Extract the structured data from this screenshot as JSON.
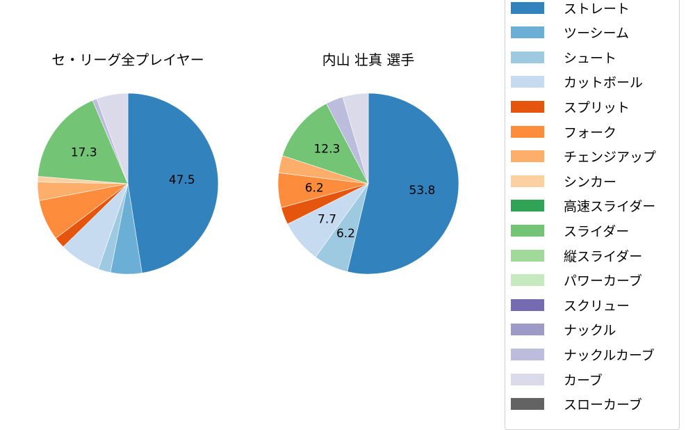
{
  "chart_data": [
    {
      "type": "pie",
      "title": "セ・リーグ全プレイヤー",
      "categories": [
        "ストレート",
        "ツーシーム",
        "シュート",
        "カットボール",
        "スプリット",
        "フォーク",
        "チェンジアップ",
        "シンカー",
        "スライダー",
        "ナックルカーブ",
        "カーブ"
      ],
      "values": [
        47.5,
        5.6,
        2.2,
        7.4,
        2.0,
        7.3,
        3.3,
        1.0,
        17.3,
        0.8,
        5.6
      ],
      "labels_shown": {
        "ストレート": "47.5",
        "スライダー": "17.3"
      },
      "start_angle": 90,
      "direction": "clockwise"
    },
    {
      "type": "pie",
      "title": "内山 壮真  選手",
      "categories": [
        "ストレート",
        "シュート",
        "カットボール",
        "スプリット",
        "フォーク",
        "チェンジアップ",
        "スライダー",
        "ナックルカーブ",
        "カーブ"
      ],
      "values": [
        53.8,
        6.2,
        7.7,
        3.1,
        6.2,
        3.1,
        12.3,
        3.1,
        4.6
      ],
      "labels_shown": {
        "ストレート": "53.8",
        "シュート": "6.2",
        "カットボール": "7.7",
        "フォーク": "6.2",
        "スライダー": "12.3"
      },
      "start_angle": 90,
      "direction": "clockwise"
    }
  ],
  "titles": {
    "left": "セ・リーグ全プレイヤー",
    "right": "内山 壮真  選手"
  },
  "legend": [
    {
      "label": "ストレート",
      "color": "#3182bd"
    },
    {
      "label": "ツーシーム",
      "color": "#6baed6"
    },
    {
      "label": "シュート",
      "color": "#9ecae1"
    },
    {
      "label": "カットボール",
      "color": "#c6dbef"
    },
    {
      "label": "スプリット",
      "color": "#e6550d"
    },
    {
      "label": "フォーク",
      "color": "#fd8d3c"
    },
    {
      "label": "チェンジアップ",
      "color": "#fdae6b"
    },
    {
      "label": "シンカー",
      "color": "#fdd0a2"
    },
    {
      "label": "高速スライダー",
      "color": "#31a354"
    },
    {
      "label": "スライダー",
      "color": "#74c476"
    },
    {
      "label": "縦スライダー",
      "color": "#a1d99b"
    },
    {
      "label": "パワーカーブ",
      "color": "#c7e9c0"
    },
    {
      "label": "スクリュー",
      "color": "#756bb1"
    },
    {
      "label": "ナックル",
      "color": "#9e9ac8"
    },
    {
      "label": "ナックルカーブ",
      "color": "#bcbddc"
    },
    {
      "label": "カーブ",
      "color": "#dadaeb"
    },
    {
      "label": "スローカーブ",
      "color": "#636363"
    }
  ]
}
